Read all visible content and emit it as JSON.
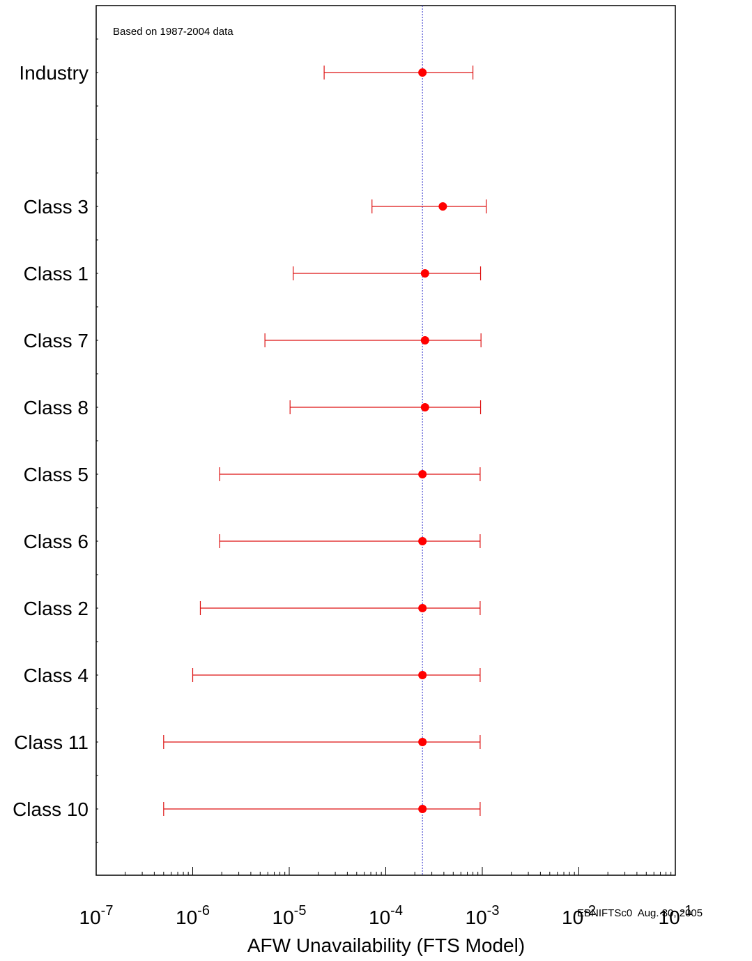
{
  "chart_data": {
    "type": "scatter",
    "subtype": "horizontal-interval",
    "annotation": "Based on 1987-2004 data",
    "xlabel": "AFW Unavailability (FTS Model)",
    "ylabel": "",
    "footer": "EBNIFTSc0  Aug. 30, 2005",
    "x_scale": "log",
    "xlim": [
      1e-07,
      0.1
    ],
    "x_ticks": [
      {
        "value": 1e-07,
        "base": "10",
        "exp": "-7"
      },
      {
        "value": 1e-06,
        "base": "10",
        "exp": "-6"
      },
      {
        "value": 1e-05,
        "base": "10",
        "exp": "-5"
      },
      {
        "value": 0.0001,
        "base": "10",
        "exp": "-4"
      },
      {
        "value": 0.001,
        "base": "10",
        "exp": "-3"
      },
      {
        "value": 0.01,
        "base": "10",
        "exp": "-2"
      },
      {
        "value": 0.1,
        "base": "10",
        "exp": "-1"
      }
    ],
    "reference_line": {
      "x": 0.00024,
      "color": "#3333cc",
      "style": "dotted"
    },
    "grid": false,
    "colors": {
      "point": "#ff0000",
      "interval": "#dd1111",
      "frame": "#000000"
    },
    "rows": [
      {
        "label": "Industry",
        "lower": 2.3e-05,
        "point": 0.00024,
        "upper": 0.0008
      },
      {
        "label": "Class 3",
        "lower": 7.2e-05,
        "point": 0.00039,
        "upper": 0.0011
      },
      {
        "label": "Class 1",
        "lower": 1.1e-05,
        "point": 0.000255,
        "upper": 0.00096
      },
      {
        "label": "Class 7",
        "lower": 5.6e-06,
        "point": 0.000255,
        "upper": 0.00097
      },
      {
        "label": "Class 8",
        "lower": 1.02e-05,
        "point": 0.000255,
        "upper": 0.00096
      },
      {
        "label": "Class 5",
        "lower": 1.9e-06,
        "point": 0.00024,
        "upper": 0.00095
      },
      {
        "label": "Class 6",
        "lower": 1.9e-06,
        "point": 0.00024,
        "upper": 0.00095
      },
      {
        "label": "Class 2",
        "lower": 1.2e-06,
        "point": 0.00024,
        "upper": 0.00095
      },
      {
        "label": "Class 4",
        "lower": 1e-06,
        "point": 0.00024,
        "upper": 0.00095
      },
      {
        "label": "Class 11",
        "lower": 5e-07,
        "point": 0.00024,
        "upper": 0.00095
      },
      {
        "label": "Class 10",
        "lower": 5e-07,
        "point": 0.00024,
        "upper": 0.00095
      }
    ]
  }
}
